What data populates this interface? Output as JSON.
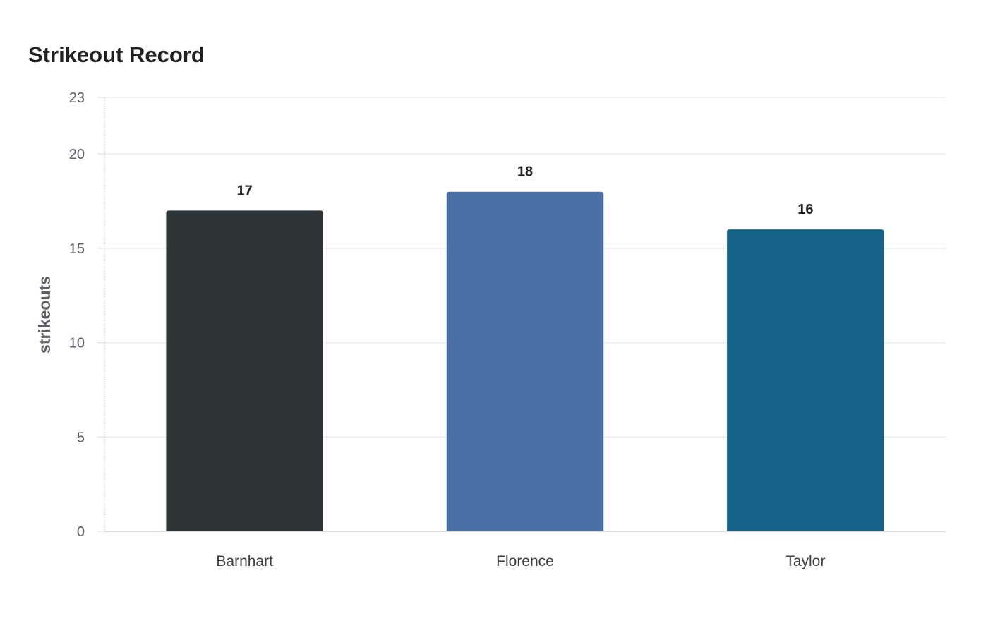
{
  "chart_data": {
    "type": "bar",
    "title": "Strikeout Record",
    "xlabel": "",
    "ylabel": "strikeouts",
    "categories": [
      "Barnhart",
      "Florence",
      "Taylor"
    ],
    "values": [
      17,
      18,
      16
    ],
    "data_labels": [
      "17",
      "18",
      "16"
    ],
    "colors": [
      "#2e3538",
      "#4a6fa5",
      "#176289"
    ],
    "ylim": [
      0,
      23
    ],
    "yticks": [
      0,
      5,
      10,
      15,
      20,
      23
    ],
    "ytick_labels": [
      "0",
      "5",
      "10",
      "15",
      "20",
      "23"
    ],
    "grid": true,
    "legend": "none"
  }
}
